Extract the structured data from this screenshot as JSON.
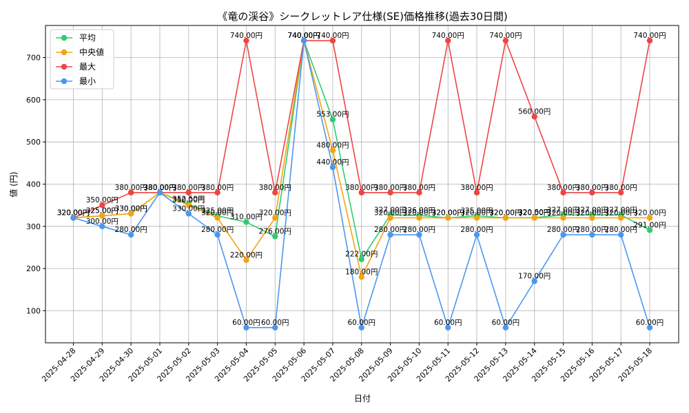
{
  "chart_data": {
    "type": "line",
    "title": "《竜の渓谷》シークレットレア仕様(SE)価格推移(過去30日間)",
    "xlabel": "日付",
    "ylabel": "値 (円)",
    "unit_suffix": "円",
    "x": [
      "2025-04-28",
      "2025-04-29",
      "2025-04-30",
      "2025-05-01",
      "2025-05-02",
      "2025-05-03",
      "2025-05-04",
      "2025-05-05",
      "2025-05-06",
      "2025-05-07",
      "2025-05-08",
      "2025-05-09",
      "2025-05-10",
      "2025-05-11",
      "2025-05-12",
      "2025-05-13",
      "2025-05-14",
      "2025-05-15",
      "2025-05-16",
      "2025-05-17",
      "2025-05-18"
    ],
    "ylim": [
      24,
      776
    ],
    "yticks": [
      100,
      200,
      300,
      400,
      500,
      600,
      700
    ],
    "grid": true,
    "legend_position": "top-left",
    "series": [
      {
        "name": "平均",
        "color": "#2ecc71",
        "values": [
          320,
          325,
          330,
          380,
          352.5,
          325,
          310,
          276,
          740,
          553,
          222,
          327,
          326,
          320,
          325,
          320,
          320.5,
          327,
          327,
          327,
          291
        ]
      },
      {
        "name": "中央値",
        "color": "#f5a30f",
        "values": [
          320,
          325,
          330,
          380,
          350,
          320,
          220,
          320,
          740,
          480,
          180,
          320,
          320,
          320,
          320,
          320,
          320,
          320,
          320,
          320,
          320
        ]
      },
      {
        "name": "最大",
        "color": "#ef4444",
        "values": [
          320,
          350,
          380,
          380,
          380,
          380,
          740,
          380,
          740,
          740,
          380,
          380,
          380,
          740,
          380,
          740,
          560,
          380,
          380,
          380,
          740
        ]
      },
      {
        "name": "最小",
        "color": "#4a97f0",
        "values": [
          320,
          300,
          280,
          380,
          330,
          280,
          60,
          60,
          740,
          440,
          60,
          280,
          280,
          60,
          280,
          60,
          170,
          280,
          280,
          280,
          60
        ]
      }
    ]
  }
}
